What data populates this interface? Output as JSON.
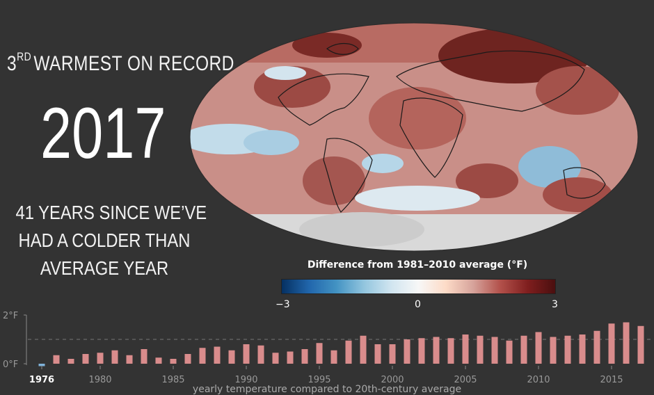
{
  "headline": {
    "rank_number": "3",
    "rank_suffix": "RD",
    "rank_text": "WARMEST ON RECORD",
    "year": "2017",
    "since_lines": [
      "41 YEARS SINCE WE’VE",
      "HAD A COLDER THAN",
      "AVERAGE YEAR"
    ]
  },
  "legend": {
    "title": "Difference from 1981–2010 average (°F)",
    "min_label": "−3",
    "mid_label": "0",
    "max_label": "3",
    "colors": {
      "cold": "#2166ac",
      "neutral": "#f7f7f7",
      "warm": "#b2504a",
      "hot": "#4a0f0f"
    }
  },
  "caption": "yearly temperature compared to 20th-century average",
  "chart_data": {
    "type": "bar",
    "title": "",
    "xlabel": "yearly temperature compared to 20th-century average",
    "ylabel": "",
    "y_ticks": [
      "2°F",
      "0°F"
    ],
    "ylim": [
      0,
      2
    ],
    "reference_line": 1,
    "x_tick_labels": [
      "1976",
      "1980",
      "1985",
      "1990",
      "1995",
      "2000",
      "2005",
      "2010",
      "2015"
    ],
    "highlight_year": "1976",
    "bar_color": "#d98c8c",
    "negative_bar_color": "#7fb2d9",
    "categories": [
      "1976",
      "1977",
      "1978",
      "1979",
      "1980",
      "1981",
      "1982",
      "1983",
      "1984",
      "1985",
      "1986",
      "1987",
      "1988",
      "1989",
      "1990",
      "1991",
      "1992",
      "1993",
      "1994",
      "1995",
      "1996",
      "1997",
      "1998",
      "1999",
      "2000",
      "2001",
      "2002",
      "2003",
      "2004",
      "2005",
      "2006",
      "2007",
      "2008",
      "2009",
      "2010",
      "2011",
      "2012",
      "2013",
      "2014",
      "2015",
      "2016",
      "2017"
    ],
    "values": [
      -0.1,
      0.35,
      0.2,
      0.4,
      0.45,
      0.55,
      0.35,
      0.6,
      0.25,
      0.2,
      0.4,
      0.65,
      0.7,
      0.55,
      0.8,
      0.75,
      0.45,
      0.5,
      0.6,
      0.85,
      0.55,
      0.95,
      1.15,
      0.8,
      0.8,
      1.0,
      1.05,
      1.1,
      1.05,
      1.2,
      1.15,
      1.1,
      0.95,
      1.15,
      1.3,
      1.1,
      1.15,
      1.2,
      1.35,
      1.65,
      1.7,
      1.55
    ]
  }
}
